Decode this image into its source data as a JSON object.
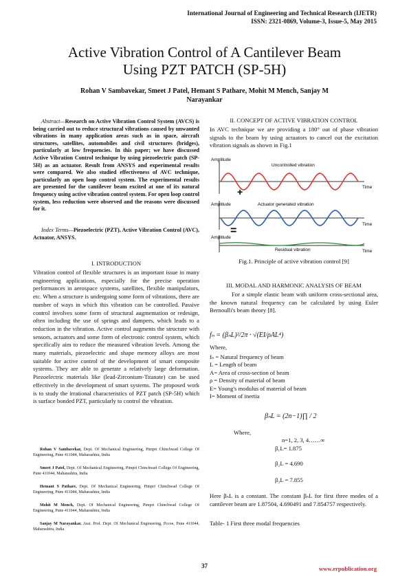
{
  "header": {
    "journal": "International Journal of Engineering and Technical Research (IJETR)",
    "issn": "ISSN: 2321-0869, Volume-3, Issue-5, May 2015"
  },
  "title": [
    "Active Vibration Control of A Cantilever Beam",
    "Using PZT PATCH (SP-5H)"
  ],
  "authors": [
    "Rohan V Sambavekar, Smeet J Patel, Hemant S Pathare, Mohit M Mench, Sanjay M",
    "Narayankar"
  ],
  "abstract": {
    "label": "Abstract—",
    "text": "Research on Active Vibration Control System (AVCS) is being carried out to reduce structural vibrations caused by unwanted vibrations in many application areas such as in space, aircraft structures, satellites, automobiles and civil structures (bridges), particularly at low frequencies. In this paper; we have discussed Active Vibration Control technique by using piezoelectric patch (SP-5H) as an actuator. Result from ANSYS and experimental results were compared. We also studied effectiveness of AVC technique, particularly an open loop control system. The experimental results are presented for the cantilever beam excited at one of its natural frequency using active vibration control system. For open loop control system, less reduction were observed and the reasons were discussed for it."
  },
  "index_terms": {
    "label": "Index Terms—",
    "text": "Piezoelectric (PZT), Active Vibration Control (AVC), Actuator, ANSYS."
  },
  "intro": {
    "heading": "I.  INTRODUCTION",
    "text": "Vibration control of flexible structures is an important issue in many engineering applications, especially for the precise operation performances in aerospace systems, satellites, flexible manipulators, etc. When a structure is undergoing some form of vibrations, there are number of ways in which this vibration can be controlled. Passive control involves some form of structural augmentation or redesign, often including the use of springs and dampers, which leads to a reduction in the vibration. Active control augments the structure with sensors, actuators and some form of electronic control system, which specifically aim to reduce the measured vibration levels. Among the many materials, piezoelectric and shape memory alloys are most suitable for active control of the development of smart composite systems. They are able to generate a relatively large deformation. Piezoelectric materials like (lead-Zirconium-Titanate) can be used effectively in the development of smart systems. The proposed work is to study the irrational characteristics of PZT patch (SP-5H) which is surface bonded PZT, particularly to control the vibration."
  },
  "affiliations": [
    {
      "name": "Rohan V Sambavekar,",
      "text": "Dept. Of Mechanical Engineering, Pimpri Chinchwad College Of Engineering, Pune 411044, Maharashtra, India"
    },
    {
      "name": "Smeet J Patel,",
      "text": "Dept. Of Mechanical Engineering, Pimpri Chinchwad College Of Engineering, Pune 411044, Maharashtra, India"
    },
    {
      "name": "Hemant S Pathare,",
      "text": "Dept. Of Mechanical Engineering, Pimpri Chinchwad College Of Engineering, Pune 411044, Maharashtra, India"
    },
    {
      "name": "Mohit M Mench,",
      "text": "Dept. Of Mechanical Engineering, Pimpri Chinchwad College Of Engineering, Pune 411044, Maharashtra, India"
    },
    {
      "name": "Sanjay M Narayankar,",
      "text": "Asst. Prof. Dept. Of Mechanical Engineering, Pccoe, Pune 411044, Maharashtra, India"
    }
  ],
  "concept": {
    "heading": "II.  CONCEPT OF ACTIVE VIBRATION CONTROL",
    "text": "In AVC technique we are providing a 180° out of phase vibration signals to the beam by using actuators to cancel out the excitation vibration signals as shown in Fig.1"
  },
  "figure": {
    "amplitude": "Amplitude",
    "time": "Time",
    "panel_labels": [
      "Uncontrolled vibration",
      "Actuator generated vibration",
      "Residual vibration"
    ],
    "caption": "Fig.1. Principle of active vibration control [9]"
  },
  "modal": {
    "heading": "III.  MODAL AND HARMONIC ANALYSIS OF BEAM",
    "text": "For a simple elastic beam with uniform cross-sectional area, the known natural frequency can be calculated by using Euler Bernoulli's beam theory [8].",
    "formula": "fₙ = (βₙL)²/2π · √(EI/ρAL⁴)",
    "where": "Where,",
    "definitions": [
      "fₙ = Natural frequency of beam",
      "L = Length of beam",
      "A= Area of cross-section of beam",
      "ρ = Density of material of beam",
      "E= Young's modulus of material of beam",
      "I= Moment of inertia"
    ],
    "beta_formula": "βₙL = (2n−1)∏ / 2",
    "where2": "Where,",
    "n_values": "n=1, 2, 3, 4……∞",
    "betas": [
      "β₁L= 1.875",
      "β₂L = 4.690",
      "β₃L = 7.855"
    ],
    "text2": "Here βₙL is a constant. The constant βₙL for first three modes of a cantilever beam are 1.87504, 4.690491 and 7.854757 respectively.",
    "table_caption": "Table- 1 First three modal frequencies"
  },
  "footer": {
    "page": "37",
    "url": "www.erpublication.org"
  }
}
